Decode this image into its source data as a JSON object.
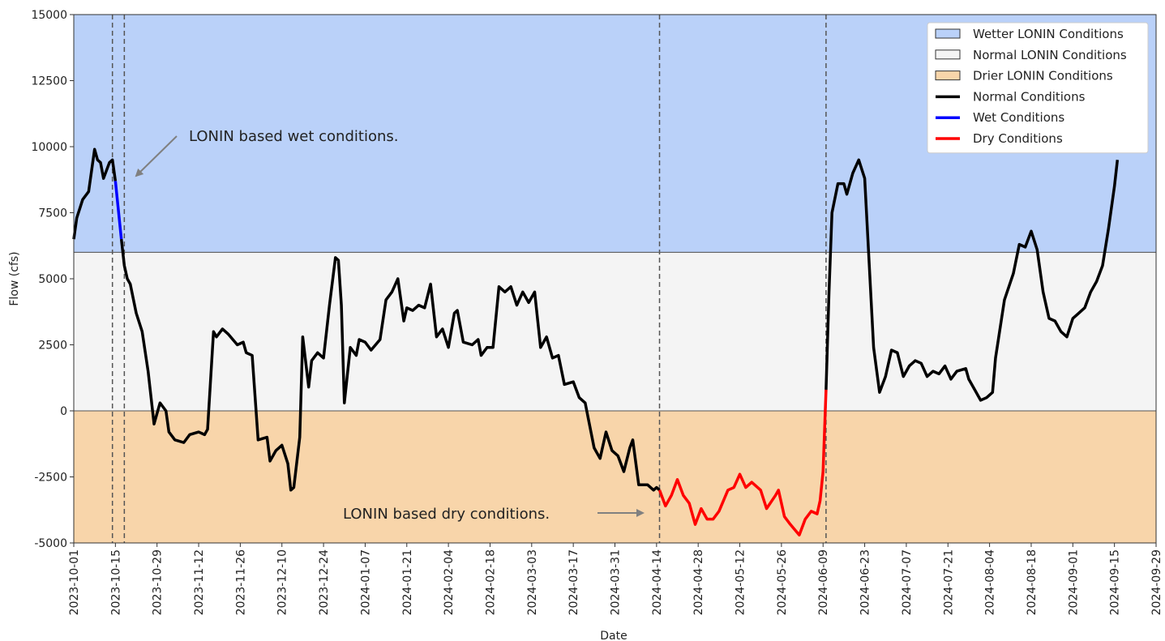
{
  "chart_data": {
    "type": "line",
    "xlabel": "Date",
    "ylabel": "Flow (cfs)",
    "xlim": [
      "2023-10-01",
      "2024-09-29"
    ],
    "ylim": [
      -5000,
      15000
    ],
    "yticks": [
      -5000,
      -2500,
      0,
      2500,
      5000,
      7500,
      10000,
      12500,
      15000
    ],
    "xticks": [
      "2023-10-01",
      "2023-10-15",
      "2023-10-29",
      "2023-11-12",
      "2023-11-26",
      "2023-12-10",
      "2023-12-24",
      "2024-01-07",
      "2024-01-21",
      "2024-02-04",
      "2024-02-18",
      "2024-03-03",
      "2024-03-17",
      "2024-03-31",
      "2024-04-14",
      "2024-04-28",
      "2024-05-12",
      "2024-05-26",
      "2024-06-09",
      "2024-06-23",
      "2024-07-07",
      "2024-07-21",
      "2024-08-04",
      "2024-08-18",
      "2024-09-01",
      "2024-09-15",
      "2024-09-29"
    ],
    "bands": [
      {
        "name": "Wetter LONIN Conditions",
        "color": "#bad1f9",
        "from": 6000,
        "to": 15000
      },
      {
        "name": "Normal LONIN Conditions",
        "color": "#f4f4f4",
        "from": 0,
        "to": 6000
      },
      {
        "name": "Drier LONIN Conditions",
        "color": "#f8d5aa",
        "from": -5000,
        "to": 0
      }
    ],
    "vlines": [
      "2023-10-14",
      "2023-10-18",
      "2024-04-15",
      "2024-06-10"
    ],
    "annotations": [
      "LONIN based wet conditions.",
      "LONIN based dry conditions."
    ],
    "legend": "upper right",
    "x": [
      "2023-10-01",
      "2023-10-02",
      "2023-10-04",
      "2023-10-06",
      "2023-10-08",
      "2023-10-09",
      "2023-10-10",
      "2023-10-11",
      "2023-10-13",
      "2023-10-14",
      "2023-10-15",
      "2023-10-16",
      "2023-10-17",
      "2023-10-18",
      "2023-10-19",
      "2023-10-20",
      "2023-10-22",
      "2023-10-24",
      "2023-10-26",
      "2023-10-28",
      "2023-10-30",
      "2023-11-01",
      "2023-11-02",
      "2023-11-04",
      "2023-11-07",
      "2023-11-09",
      "2023-11-12",
      "2023-11-14",
      "2023-11-15",
      "2023-11-17",
      "2023-11-18",
      "2023-11-20",
      "2023-11-22",
      "2023-11-25",
      "2023-11-27",
      "2023-11-28",
      "2023-11-30",
      "2023-12-02",
      "2023-12-05",
      "2023-12-06",
      "2023-12-08",
      "2023-12-10",
      "2023-12-12",
      "2023-12-13",
      "2023-12-14",
      "2023-12-16",
      "2023-12-17",
      "2023-12-19",
      "2023-12-20",
      "2023-12-22",
      "2023-12-24",
      "2023-12-26",
      "2023-12-28",
      "2023-12-29",
      "2023-12-30",
      "2023-12-31",
      "2024-01-02",
      "2024-01-04",
      "2024-01-05",
      "2024-01-07",
      "2024-01-09",
      "2024-01-12",
      "2024-01-14",
      "2024-01-16",
      "2024-01-18",
      "2024-01-20",
      "2024-01-21",
      "2024-01-23",
      "2024-01-25",
      "2024-01-27",
      "2024-01-29",
      "2024-01-31",
      "2024-02-02",
      "2024-02-04",
      "2024-02-06",
      "2024-02-07",
      "2024-02-09",
      "2024-02-12",
      "2024-02-14",
      "2024-02-15",
      "2024-02-17",
      "2024-02-19",
      "2024-02-21",
      "2024-02-23",
      "2024-02-25",
      "2024-02-27",
      "2024-02-29",
      "2024-03-02",
      "2024-03-04",
      "2024-03-06",
      "2024-03-08",
      "2024-03-10",
      "2024-03-12",
      "2024-03-14",
      "2024-03-17",
      "2024-03-19",
      "2024-03-21",
      "2024-03-24",
      "2024-03-26",
      "2024-03-28",
      "2024-03-30",
      "2024-04-01",
      "2024-04-03",
      "2024-04-05",
      "2024-04-06",
      "2024-04-08",
      "2024-04-11",
      "2024-04-13",
      "2024-04-14",
      "2024-04-15",
      "2024-04-17",
      "2024-04-19",
      "2024-04-21",
      "2024-04-23",
      "2024-04-25",
      "2024-04-27",
      "2024-04-29",
      "2024-05-01",
      "2024-05-03",
      "2024-05-05",
      "2024-05-08",
      "2024-05-10",
      "2024-05-12",
      "2024-05-14",
      "2024-05-16",
      "2024-05-19",
      "2024-05-21",
      "2024-05-24",
      "2024-05-25",
      "2024-05-27",
      "2024-05-29",
      "2024-06-01",
      "2024-06-03",
      "2024-06-05",
      "2024-06-07",
      "2024-06-08",
      "2024-06-09",
      "2024-06-10",
      "2024-06-11",
      "2024-06-12",
      "2024-06-14",
      "2024-06-16",
      "2024-06-17",
      "2024-06-19",
      "2024-06-21",
      "2024-06-23",
      "2024-06-26",
      "2024-06-28",
      "2024-06-30",
      "2024-07-02",
      "2024-07-04",
      "2024-07-06",
      "2024-07-08",
      "2024-07-10",
      "2024-07-12",
      "2024-07-14",
      "2024-07-16",
      "2024-07-18",
      "2024-07-20",
      "2024-07-22",
      "2024-07-24",
      "2024-07-27",
      "2024-07-28",
      "2024-07-30",
      "2024-08-01",
      "2024-08-03",
      "2024-08-05",
      "2024-08-06",
      "2024-08-09",
      "2024-08-12",
      "2024-08-14",
      "2024-08-16",
      "2024-08-18",
      "2024-08-20",
      "2024-08-22",
      "2024-08-24",
      "2024-08-26",
      "2024-08-28",
      "2024-08-30",
      "2024-09-01",
      "2024-09-03",
      "2024-09-05",
      "2024-09-07",
      "2024-09-09",
      "2024-09-11",
      "2024-09-13",
      "2024-09-15",
      "2024-09-16"
    ],
    "series": [
      {
        "name": "Normal Conditions",
        "color": "#000000",
        "values": [
          6500,
          7300,
          8000,
          8300,
          9900,
          9500,
          9400,
          8800,
          9400,
          9500,
          8700,
          null,
          6500,
          5500,
          5000,
          4800,
          3700,
          3000,
          1500,
          -500,
          300,
          0,
          -800,
          -1100,
          -1200,
          -900,
          -800,
          -900,
          -700,
          3000,
          2800,
          3100,
          2900,
          2500,
          2600,
          2200,
          2100,
          -1100,
          -1000,
          -1900,
          -1500,
          -1300,
          -2000,
          -3000,
          -2900,
          -1000,
          2800,
          900,
          1900,
          2200,
          2000,
          4000,
          5800,
          5700,
          4000,
          300,
          2400,
          2100,
          2700,
          2600,
          2300,
          2700,
          4200,
          4500,
          5000,
          3400,
          3900,
          3800,
          4000,
          3900,
          4800,
          2800,
          3100,
          2400,
          3700,
          3800,
          2600,
          2500,
          2700,
          2100,
          2400,
          2400,
          4700,
          4500,
          4700,
          4000,
          4500,
          4100,
          4500,
          2400,
          2800,
          2000,
          2100,
          1000,
          1100,
          500,
          300,
          -1400,
          -1800,
          -800,
          -1500,
          -1700,
          -2300,
          -1400,
          -1100,
          -2800,
          -2800,
          -3000,
          -2900,
          -3000,
          null,
          null,
          null,
          null,
          null,
          null,
          null,
          null,
          null,
          null,
          null,
          null,
          null,
          null,
          null,
          null,
          null,
          null,
          null,
          null,
          null,
          null,
          null,
          null,
          null,
          null,
          null,
          800,
          4500,
          7500,
          8600,
          8600,
          8200,
          9000,
          9500,
          8800,
          2400,
          700,
          1300,
          2300,
          2200,
          1300,
          1700,
          1900,
          1800,
          1300,
          1500,
          1400,
          1700,
          1200,
          1500,
          1600,
          1200,
          800,
          400,
          500,
          700,
          2000,
          4200,
          5200,
          6300,
          6200,
          6800,
          6100,
          4500,
          3500,
          3400,
          3000,
          2800,
          3500,
          3700,
          3900,
          4500,
          4900,
          5500,
          6900,
          8500,
          9500
        ]
      },
      {
        "name": "Wet Conditions",
        "color": "#0000ff",
        "values": [
          null,
          null,
          null,
          null,
          null,
          null,
          null,
          null,
          null,
          null,
          8700,
          7600,
          6500,
          null,
          null,
          null,
          null,
          null,
          null,
          null,
          null,
          null,
          null,
          null,
          null,
          null,
          null,
          null,
          null,
          null,
          null,
          null,
          null,
          null,
          null,
          null,
          null,
          null,
          null,
          null,
          null,
          null,
          null,
          null,
          null,
          null,
          null,
          null,
          null,
          null,
          null,
          null,
          null,
          null,
          null,
          null,
          null,
          null,
          null,
          null,
          null,
          null,
          null,
          null,
          null,
          null,
          null,
          null,
          null,
          null,
          null,
          null,
          null,
          null,
          null,
          null,
          null,
          null,
          null,
          null,
          null,
          null,
          null,
          null,
          null,
          null,
          null,
          null,
          null,
          null,
          null,
          null,
          null,
          null,
          null,
          null,
          null,
          null,
          null,
          null,
          null,
          null,
          null,
          null,
          null,
          null,
          null,
          null,
          null,
          null,
          null,
          null,
          null,
          null,
          null,
          null,
          null,
          null,
          null,
          null,
          null,
          null,
          null,
          null,
          null,
          null,
          null,
          null,
          null,
          null,
          null,
          null,
          null,
          null,
          null,
          null,
          null,
          null,
          null,
          null,
          null,
          null,
          null,
          null,
          null,
          null,
          null,
          null,
          null,
          null,
          null,
          null,
          null,
          null,
          null,
          null,
          null,
          null,
          null,
          null,
          null,
          null,
          null,
          null,
          null,
          null,
          null,
          null,
          null,
          null,
          null,
          null,
          null,
          null,
          null,
          null,
          null,
          null,
          null,
          null,
          null,
          null,
          null,
          null,
          null,
          null,
          null,
          null
        ]
      },
      {
        "name": "Dry Conditions",
        "color": "#ff0000",
        "values": [
          null,
          null,
          null,
          null,
          null,
          null,
          null,
          null,
          null,
          null,
          null,
          null,
          null,
          null,
          null,
          null,
          null,
          null,
          null,
          null,
          null,
          null,
          null,
          null,
          null,
          null,
          null,
          null,
          null,
          null,
          null,
          null,
          null,
          null,
          null,
          null,
          null,
          null,
          null,
          null,
          null,
          null,
          null,
          null,
          null,
          null,
          null,
          null,
          null,
          null,
          null,
          null,
          null,
          null,
          null,
          null,
          null,
          null,
          null,
          null,
          null,
          null,
          null,
          null,
          null,
          null,
          null,
          null,
          null,
          null,
          null,
          null,
          null,
          null,
          null,
          null,
          null,
          null,
          null,
          null,
          null,
          null,
          null,
          null,
          null,
          null,
          null,
          null,
          null,
          null,
          null,
          null,
          null,
          null,
          null,
          null,
          null,
          null,
          null,
          null,
          null,
          null,
          null,
          null,
          null,
          null,
          null,
          null,
          null,
          -3000,
          -3600,
          -3200,
          -2600,
          -3200,
          -3500,
          -4300,
          -3700,
          -4100,
          -4100,
          -3800,
          -3000,
          -2900,
          -2400,
          -2900,
          -2700,
          -3000,
          -3700,
          -3200,
          -3000,
          -4000,
          -4300,
          -4700,
          -4100,
          -3800,
          -3900,
          -3400,
          -2300,
          800,
          null,
          null,
          null,
          null,
          null,
          null,
          null,
          null,
          null,
          null,
          null,
          null,
          null,
          null,
          null,
          null,
          null,
          null,
          null,
          null,
          null,
          null,
          null,
          null,
          null,
          null,
          null,
          null,
          null,
          null,
          null,
          null,
          null,
          null,
          null,
          null,
          null,
          null,
          null,
          null,
          null,
          null,
          null,
          null,
          null,
          null,
          null,
          null,
          null,
          null
        ]
      }
    ]
  }
}
